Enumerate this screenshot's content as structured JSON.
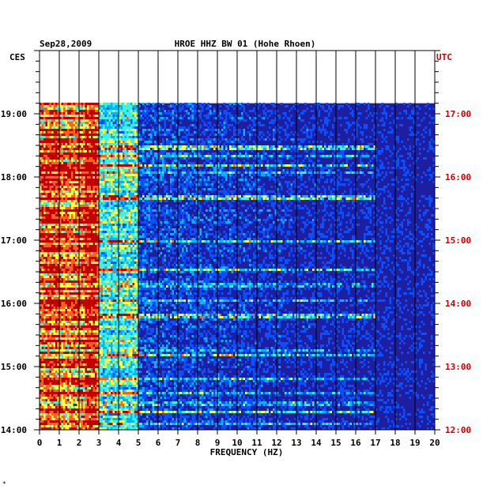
{
  "chart_data": {
    "type": "heatmap",
    "date": "Sep28,2009",
    "title": "HROE HHZ BW 01 (Hohe Rhoen)",
    "left_timezone": "CES",
    "right_timezone": "UTC",
    "xlabel": "FREQUENCY (HZ)",
    "xlim": [
      0,
      20
    ],
    "x_ticks": [
      "0",
      "1",
      "2",
      "3",
      "4",
      "5",
      "6",
      "7",
      "8",
      "9",
      "10",
      "11",
      "12",
      "13",
      "14",
      "15",
      "16",
      "17",
      "18",
      "19",
      "20"
    ],
    "left_time_ticks": [
      "19:00",
      "18:00",
      "17:00",
      "16:00",
      "15:00",
      "14:00"
    ],
    "right_time_ticks": [
      "17:00",
      "16:00",
      "15:00",
      "14:00",
      "13:00",
      "12:00"
    ],
    "time_start_ces": "14:00",
    "time_end_ces": "20:00",
    "data_end_ces": "19:10",
    "grid": true,
    "colors": {
      "background": "#1e1ea0",
      "grid": "#000000",
      "utc_label": "#cc0000",
      "axis_text": "#000000"
    },
    "colormap": [
      "#14148c",
      "#0a50ff",
      "#00b4ff",
      "#40f0e0",
      "#ffff40",
      "#ff6020",
      "#c00000"
    ],
    "intensity_features": {
      "band_0_3hz": "high",
      "band_3_5hz": "medium",
      "band_above_5hz": "low",
      "horizontal_streak_hours_ces": [
        18.48,
        18.2,
        17.7,
        17.0,
        16.55,
        15.82,
        15.2,
        14.3
      ]
    }
  },
  "footer_mark": "*"
}
